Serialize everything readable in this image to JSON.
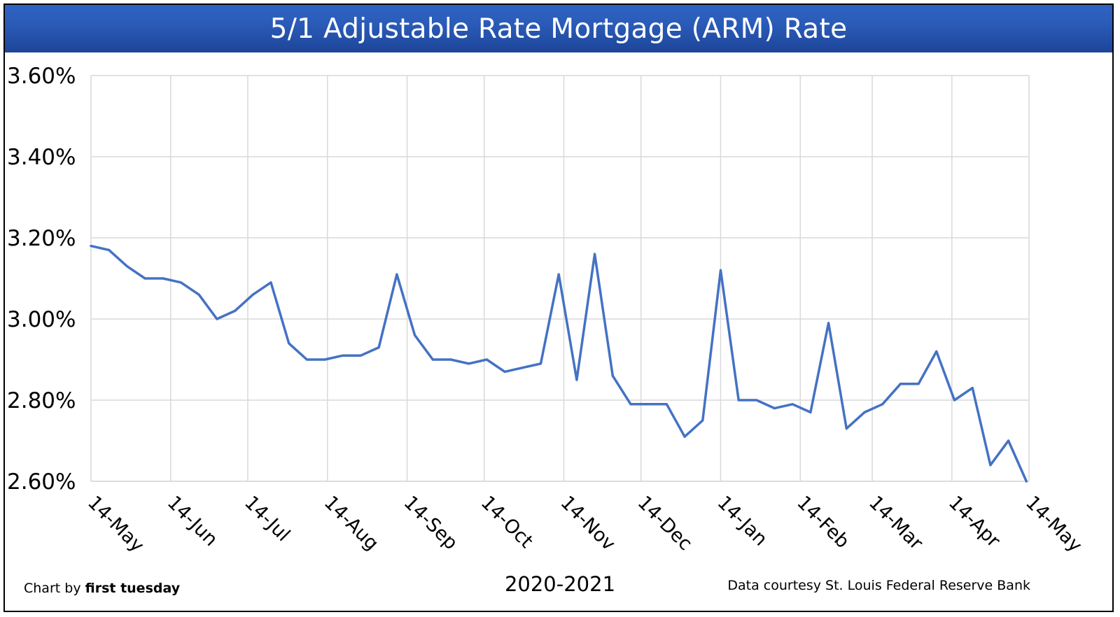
{
  "chart_data": {
    "type": "line",
    "title": "5/1 Adjustable Rate Mortgage (ARM) Rate",
    "xlabel": "2020-2021",
    "ylabel": "",
    "credit_prefix": "Chart by ",
    "credit_brand": "first tuesday",
    "source": "Data courtesy St. Louis Federal Reserve Bank",
    "ylim": [
      2.6,
      3.6
    ],
    "y_ticks": [
      2.6,
      2.8,
      3.0,
      3.2,
      3.4,
      3.6
    ],
    "y_tick_labels": [
      "2.60%",
      "2.80%",
      "3.00%",
      "3.20%",
      "3.40%",
      "3.60%"
    ],
    "x_range": [
      "2020-05-14",
      "2021-05-14"
    ],
    "x_ticks": [
      "2020-05-14",
      "2020-06-14",
      "2020-07-14",
      "2020-08-14",
      "2020-09-14",
      "2020-10-14",
      "2020-11-14",
      "2020-12-14",
      "2021-01-14",
      "2021-02-14",
      "2021-03-14",
      "2021-04-14",
      "2021-05-14"
    ],
    "x_tick_labels": [
      "14-May",
      "14-Jun",
      "14-Jul",
      "14-Aug",
      "14-Sep",
      "14-Oct",
      "14-Nov",
      "14-Dec",
      "14-Jan",
      "14-Feb",
      "14-Mar",
      "14-Apr",
      "14-May"
    ],
    "grid": true,
    "line_color": "#4472c4",
    "series": [
      {
        "x": [
          "2020-05-14",
          "2020-05-21",
          "2020-05-28",
          "2020-06-04",
          "2020-06-11",
          "2020-06-18",
          "2020-06-25",
          "2020-07-02",
          "2020-07-09",
          "2020-07-16",
          "2020-07-23",
          "2020-07-30",
          "2020-08-06",
          "2020-08-13",
          "2020-08-20",
          "2020-08-27",
          "2020-09-03",
          "2020-09-10",
          "2020-09-17",
          "2020-09-24",
          "2020-10-01",
          "2020-10-08",
          "2020-10-15",
          "2020-10-22",
          "2020-10-29",
          "2020-11-05",
          "2020-11-12",
          "2020-11-19",
          "2020-11-26",
          "2020-12-03",
          "2020-12-10",
          "2020-12-17",
          "2020-12-24",
          "2020-12-31",
          "2021-01-07",
          "2021-01-14",
          "2021-01-21",
          "2021-01-28",
          "2021-02-04",
          "2021-02-11",
          "2021-02-18",
          "2021-02-25",
          "2021-03-04",
          "2021-03-11",
          "2021-03-18",
          "2021-03-25",
          "2021-04-01",
          "2021-04-08",
          "2021-04-15",
          "2021-04-22",
          "2021-04-29",
          "2021-05-06",
          "2021-05-13"
        ],
        "values": [
          3.18,
          3.17,
          3.13,
          3.1,
          3.1,
          3.09,
          3.06,
          3.0,
          3.02,
          3.06,
          3.09,
          2.94,
          2.9,
          2.9,
          2.91,
          2.91,
          2.93,
          3.11,
          2.96,
          2.9,
          2.9,
          2.89,
          2.9,
          2.87,
          2.88,
          2.89,
          3.11,
          2.85,
          3.16,
          2.86,
          2.79,
          2.79,
          2.79,
          2.71,
          2.75,
          3.12,
          2.8,
          2.8,
          2.78,
          2.79,
          2.77,
          2.99,
          2.73,
          2.77,
          2.79,
          2.84,
          2.84,
          2.92,
          2.8,
          2.83,
          2.64,
          2.7,
          2.6
        ]
      }
    ]
  }
}
